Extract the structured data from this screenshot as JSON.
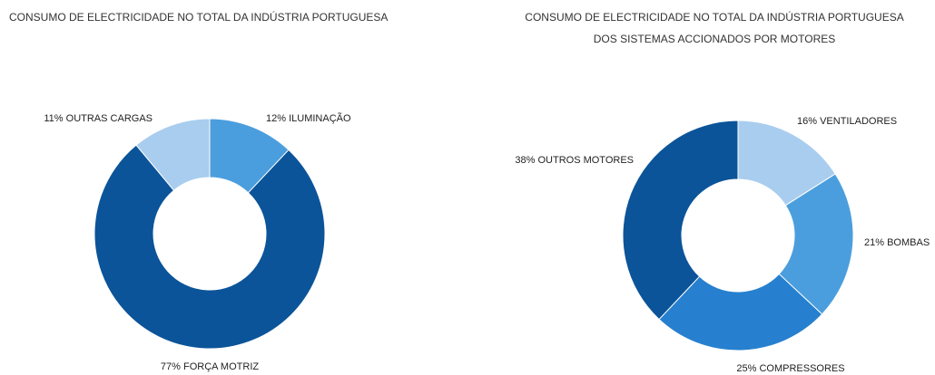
{
  "chart_data": [
    {
      "type": "donut",
      "title": [
        "CONSUMO DE ELECTRICIDADE NO TOTAL DA  INDÚSTRIA PORTUGUESA"
      ],
      "categories": [
        "ILUMINAÇÃO",
        "FORÇA MOTRIZ",
        "OUTRAS CARGAS"
      ],
      "values": [
        12,
        77,
        11
      ],
      "value_labels": [
        "12%",
        "77%",
        "11%"
      ],
      "colors": [
        "#4b9edd",
        "#0b5499",
        "#a9cdee"
      ]
    },
    {
      "type": "donut",
      "title": [
        "CONSUMO DE ELECTRICIDADE NO TOTAL DA  INDÚSTRIA PORTUGUESA",
        "DOS SISTEMAS ACCIONADOS POR MOTORES"
      ],
      "categories": [
        "VENTILADORES",
        "BOMBAS",
        "COMPRESSORES",
        "OUTROS MOTORES"
      ],
      "values": [
        16,
        21,
        25,
        38
      ],
      "value_labels": [
        "16%",
        "21%",
        "25%",
        "38%"
      ],
      "colors": [
        "#a9cdee",
        "#4b9edd",
        "#2680cf",
        "#0b5499"
      ]
    }
  ]
}
